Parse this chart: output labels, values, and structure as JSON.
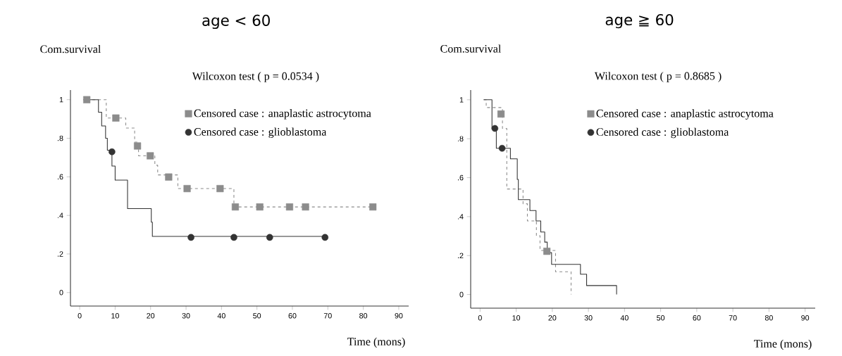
{
  "chart_data": [
    {
      "type": "step",
      "title": "age < 60",
      "ylabel": "Com.survival",
      "xlabel": "Time (mons)",
      "annotations": [
        "Wilcoxon test ( p = 0.0534 )"
      ],
      "xlim": [
        -2.6,
        92.8
      ],
      "ylim": [
        -0.07,
        1.05
      ],
      "xticks": [
        0,
        10,
        20,
        30,
        40,
        50,
        60,
        70,
        80,
        90
      ],
      "yticks": [
        0,
        {
          "value": 0.2,
          "label": ".2"
        },
        {
          "value": 0.4,
          "label": ".4"
        },
        {
          "value": 0.6,
          "label": ".6"
        },
        {
          "value": 0.8,
          "label": ".8"
        },
        1
      ],
      "legend": "top right",
      "series": [
        {
          "color": "#8c8c8c",
          "line_style": "dashed",
          "x": [
            2,
            7.5,
            13,
            15.5,
            16.6,
            21.2,
            22,
            27.7,
            43.5,
            82.7
          ],
          "values": [
            1,
            0.905,
            0.853,
            0.78,
            0.709,
            0.66,
            0.61,
            0.539,
            0.444,
            0.444
          ]
        },
        {
          "color": "#333333",
          "line_style": "solid",
          "x": [
            1,
            5.3,
            6.2,
            7.3,
            7.8,
            9.1,
            10,
            13.5,
            20.2,
            20.5,
            69.5
          ],
          "values": [
            1,
            0.935,
            0.864,
            0.8,
            0.738,
            0.656,
            0.583,
            0.435,
            0.365,
            0.291,
            0.291
          ]
        },
        {
          "type": "scatter",
          "name": "Censored case : anaplastic astrocytoma",
          "color": "#8c8c8c",
          "marker": "square",
          "x": [
            2,
            10.2,
            16.3,
            19.9,
            25.1,
            30.3,
            39.6,
            43.9,
            50.8,
            59.2,
            63.7,
            82.7
          ],
          "values": [
            1,
            0.905,
            0.76,
            0.709,
            0.599,
            0.539,
            0.539,
            0.444,
            0.444,
            0.444,
            0.444,
            0.444
          ]
        },
        {
          "type": "scatter",
          "name": "Censored case : glioblastoma",
          "color": "#333333",
          "marker": "circle",
          "x": [
            9.1,
            31.4,
            43.5,
            53.6,
            69.2
          ],
          "values": [
            0.73,
            0.286,
            0.286,
            0.286,
            0.286
          ]
        }
      ]
    },
    {
      "type": "step",
      "title": "age ≧ 60",
      "ylabel": "Com.survival",
      "xlabel": "Time (mons)",
      "annotations": [
        "Wilcoxon test ( p = 0.8685 )"
      ],
      "xlim": [
        -2.6,
        92.8
      ],
      "ylim": [
        -0.07,
        1.05
      ],
      "xticks": [
        0,
        10,
        20,
        30,
        40,
        50,
        60,
        70,
        80,
        90
      ],
      "yticks": [
        0,
        {
          "value": 0.2,
          "label": ".2"
        },
        {
          "value": 0.4,
          "label": ".4"
        },
        {
          "value": 0.6,
          "label": ".6"
        },
        {
          "value": 0.8,
          "label": ".8"
        },
        1
      ],
      "legend": "top right",
      "series": [
        {
          "color": "#8c8c8c",
          "line_style": "dashed",
          "x": [
            1,
            1.7,
            6.2,
            7.4,
            11.9,
            13.1,
            15.6,
            16.6,
            20.9,
            25.2
          ],
          "values": [
            1,
            0.96,
            0.853,
            0.542,
            0.466,
            0.378,
            0.302,
            0.226,
            0.117,
            0
          ]
        },
        {
          "color": "#333333",
          "line_style": "solid",
          "x": [
            1,
            3.3,
            4.5,
            8.4,
            10.3,
            10.6,
            13.8,
            15.5,
            16.8,
            17.9,
            18.6,
            19.8,
            27.8,
            29.5,
            37.8
          ],
          "values": [
            1,
            0.853,
            0.751,
            0.697,
            0.591,
            0.487,
            0.431,
            0.378,
            0.321,
            0.269,
            0.215,
            0.155,
            0.104,
            0.046,
            0
          ]
        },
        {
          "type": "scatter",
          "name": "Censored case : anaplastic astrocytoma",
          "color": "#8c8c8c",
          "marker": "square",
          "x": [
            5.8,
            18.5
          ],
          "values": [
            0.927,
            0.222
          ]
        },
        {
          "type": "scatter",
          "name": "Censored case : glioblastoma",
          "color": "#333333",
          "marker": "circle",
          "x": [
            4.1,
            6.1
          ],
          "values": [
            0.853,
            0.751
          ]
        }
      ]
    }
  ]
}
